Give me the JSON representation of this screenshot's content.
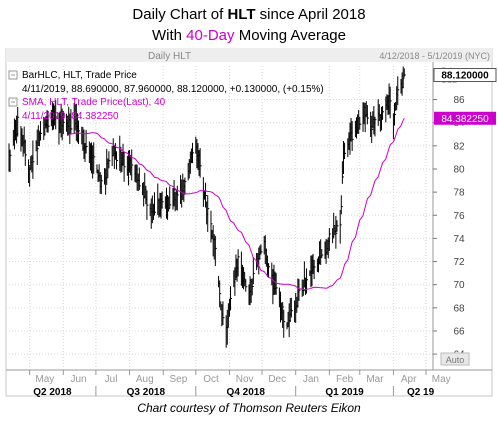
{
  "header": {
    "title_prefix": "Daily Chart of ",
    "ticker": "HLT",
    "title_suffix": " since April 2018",
    "subtitle_prefix": "With ",
    "subtitle_highlight": "40-Day",
    "subtitle_suffix": " Moving Average"
  },
  "panel": {
    "name": "Daily HLT",
    "date_range": "4/12/2018 - 5/1/2019 (NYC)",
    "price_label": "Price",
    "currency": "USD",
    "auto_label": "Auto"
  },
  "legend": {
    "bar_label": "BarHLC, HLT, Trade Price",
    "bar_values": "4/11/2019, 88.690000, 87.960000, 88.120000, +0.130000, (+0.15%)",
    "sma_label": "SMA, HLT, Trade Price(Last),  40",
    "sma_values": "4/11/2019, 84.382250"
  },
  "price_tags": {
    "last_price": "88.120000",
    "sma_price": "84.382250"
  },
  "credit": "Chart courtesy of Thomson Reuters Eikon",
  "colors": {
    "bars": "#000000",
    "sma": "#cc00cc",
    "grid": "#d8d8d8",
    "panel_header": "#eeeeee",
    "tag_bg": "#cc00cc"
  },
  "chart_data": {
    "type": "bar",
    "style": "ohlc",
    "y_ticks": [
      64,
      66,
      68,
      70,
      72,
      74,
      76,
      78,
      80,
      82,
      84,
      86
    ],
    "ylim": [
      62.8,
      88.9
    ],
    "x_month_labels": [
      "May",
      "Jun",
      "Jul",
      "Aug",
      "Sep",
      "Oct",
      "Nov",
      "Dec",
      "Jan",
      "Feb",
      "Mar",
      "Apr",
      "May"
    ],
    "x_quarter_labels": [
      "Q2 2018",
      "Q3 2018",
      "Q4 2018",
      "Q1 2019",
      "Q2 19"
    ],
    "grid": true,
    "x_start": "2018-04-12",
    "x_end": "2019-05-01",
    "anchors": [
      [
        "2018-04-12",
        81.0
      ],
      [
        "2018-04-20",
        84.0
      ],
      [
        "2018-05-01",
        80.0
      ],
      [
        "2018-05-10",
        83.0
      ],
      [
        "2018-05-22",
        84.5
      ],
      [
        "2018-06-05",
        83.5
      ],
      [
        "2018-06-12",
        84.5
      ],
      [
        "2018-06-20",
        82.0
      ],
      [
        "2018-07-02",
        80.0
      ],
      [
        "2018-07-06",
        78.5
      ],
      [
        "2018-07-16",
        81.5
      ],
      [
        "2018-07-30",
        80.5
      ],
      [
        "2018-08-10",
        79.0
      ],
      [
        "2018-08-20",
        76.5
      ],
      [
        "2018-09-04",
        77.0
      ],
      [
        "2018-09-20",
        78.5
      ],
      [
        "2018-10-01",
        82.0
      ],
      [
        "2018-10-05",
        80.5
      ],
      [
        "2018-10-12",
        76.0
      ],
      [
        "2018-10-19",
        73.0
      ],
      [
        "2018-10-24",
        68.0
      ],
      [
        "2018-10-29",
        66.0
      ],
      [
        "2018-11-02",
        69.0
      ],
      [
        "2018-11-09",
        72.0
      ],
      [
        "2018-11-19",
        69.0
      ],
      [
        "2018-11-26",
        71.5
      ],
      [
        "2018-12-03",
        74.0
      ],
      [
        "2018-12-07",
        71.0
      ],
      [
        "2018-12-14",
        69.5
      ],
      [
        "2018-12-24",
        66.5
      ],
      [
        "2019-01-03",
        69.0
      ],
      [
        "2019-01-14",
        71.0
      ],
      [
        "2019-01-28",
        73.0
      ],
      [
        "2019-02-04",
        74.5
      ],
      [
        "2019-02-11",
        75.0
      ],
      [
        "2019-02-14",
        81.0
      ],
      [
        "2019-02-22",
        83.0
      ],
      [
        "2019-03-05",
        85.0
      ],
      [
        "2019-03-12",
        84.0
      ],
      [
        "2019-03-22",
        84.5
      ],
      [
        "2019-03-28",
        86.0
      ],
      [
        "2019-04-01",
        84.0
      ],
      [
        "2019-04-05",
        86.5
      ],
      [
        "2019-04-11",
        88.12
      ]
    ],
    "series": [
      {
        "name": "BarHLC, HLT, Trade Price",
        "last": {
          "date": "2019-04-11",
          "high": 88.69,
          "low": 87.96,
          "close": 88.12
        }
      },
      {
        "name": "SMA, HLT, Trade Price(Last), 40",
        "period": 40,
        "last": {
          "date": "2019-04-11",
          "value": 84.38225
        }
      }
    ]
  }
}
